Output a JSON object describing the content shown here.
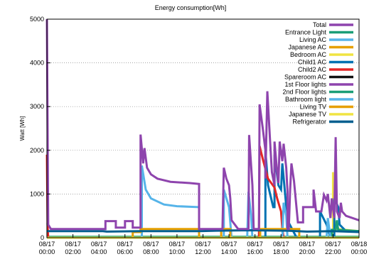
{
  "chart_data": {
    "type": "line",
    "title": "Energy consumption[Wh]",
    "xlabel": "",
    "ylabel": "Watt [Wh]",
    "x_ticks": [
      {
        "hour": 0,
        "date": "08/17",
        "time": "00:00"
      },
      {
        "hour": 2,
        "date": "08/17",
        "time": "02:00"
      },
      {
        "hour": 4,
        "date": "08/17",
        "time": "04:00"
      },
      {
        "hour": 6,
        "date": "08/17",
        "time": "06:00"
      },
      {
        "hour": 8,
        "date": "08/17",
        "time": "08:00"
      },
      {
        "hour": 10,
        "date": "08/17",
        "time": "10:00"
      },
      {
        "hour": 12,
        "date": "08/17",
        "time": "12:00"
      },
      {
        "hour": 14,
        "date": "08/17",
        "time": "14:00"
      },
      {
        "hour": 16,
        "date": "08/17",
        "time": "16:00"
      },
      {
        "hour": 18,
        "date": "08/17",
        "time": "18:00"
      },
      {
        "hour": 20,
        "date": "08/17",
        "time": "20:00"
      },
      {
        "hour": 22,
        "date": "08/17",
        "time": "22:00"
      },
      {
        "hour": 24,
        "date": "08/18",
        "time": "00:00"
      }
    ],
    "xlim": [
      0,
      24
    ],
    "ylim": [
      0,
      5000
    ],
    "y_ticks": [
      0,
      1000,
      2000,
      3000,
      4000,
      5000
    ],
    "grid": "horizontal dotted",
    "legend_position": "top-right",
    "series": [
      {
        "name": "Total",
        "color": "#8e44ad",
        "points": [
          [
            0,
            5000
          ],
          [
            0.1,
            300
          ],
          [
            0.3,
            200
          ],
          [
            4.5,
            200
          ],
          [
            4.5,
            380
          ],
          [
            5.3,
            380
          ],
          [
            5.3,
            230
          ],
          [
            6.0,
            230
          ],
          [
            6.0,
            380
          ],
          [
            6.6,
            380
          ],
          [
            6.6,
            230
          ],
          [
            7.2,
            230
          ],
          [
            7.2,
            2360
          ],
          [
            7.4,
            1700
          ],
          [
            7.5,
            2050
          ],
          [
            7.7,
            1600
          ],
          [
            8.0,
            1450
          ],
          [
            8.5,
            1350
          ],
          [
            9.5,
            1280
          ],
          [
            11,
            1250
          ],
          [
            11.7,
            1230
          ],
          [
            11.7,
            200
          ],
          [
            13.5,
            200
          ],
          [
            13.6,
            1600
          ],
          [
            13.8,
            1350
          ],
          [
            14.0,
            1200
          ],
          [
            14.1,
            900
          ],
          [
            14.2,
            400
          ],
          [
            14.7,
            200
          ],
          [
            15.5,
            200
          ],
          [
            15.55,
            2350
          ],
          [
            15.8,
            1200
          ],
          [
            15.9,
            200
          ],
          [
            16.3,
            200
          ],
          [
            16.35,
            3050
          ],
          [
            16.6,
            2500
          ],
          [
            16.8,
            2000
          ],
          [
            16.8,
            1350
          ],
          [
            16.95,
            3350
          ],
          [
            17.2,
            2000
          ],
          [
            17.3,
            1500
          ],
          [
            17.5,
            1200
          ],
          [
            17.5,
            2200
          ],
          [
            17.7,
            1500
          ],
          [
            17.8,
            1250
          ],
          [
            17.9,
            2200
          ],
          [
            18.1,
            1750
          ],
          [
            18.2,
            2150
          ],
          [
            18.4,
            1600
          ],
          [
            18.5,
            1050
          ],
          [
            18.5,
            200
          ],
          [
            18.6,
            200
          ],
          [
            18.7,
            1100
          ],
          [
            18.8,
            1700
          ],
          [
            19.0,
            1300
          ],
          [
            19.3,
            350
          ],
          [
            19.7,
            350
          ],
          [
            19.7,
            700
          ],
          [
            20.5,
            700
          ],
          [
            20.5,
            1100
          ],
          [
            20.7,
            600
          ],
          [
            21.1,
            600
          ],
          [
            21.3,
            980
          ],
          [
            21.5,
            850
          ],
          [
            21.6,
            1000
          ],
          [
            21.8,
            450
          ],
          [
            21.9,
            900
          ],
          [
            22.1,
            450
          ],
          [
            22.2,
            2300
          ],
          [
            22.3,
            600
          ],
          [
            22.5,
            450
          ],
          [
            22.6,
            800
          ],
          [
            22.7,
            600
          ],
          [
            23,
            500
          ],
          [
            23.5,
            450
          ],
          [
            24,
            400
          ]
        ]
      },
      {
        "name": "Entrance Light",
        "color": "#1a9e77",
        "points": [
          [
            0,
            340
          ],
          [
            0.05,
            340
          ],
          [
            0.05,
            20
          ],
          [
            24,
            20
          ]
        ]
      },
      {
        "name": "Living AC",
        "color": "#56b4e9",
        "points": [
          [
            0,
            0
          ],
          [
            7.3,
            0
          ],
          [
            7.3,
            1650
          ],
          [
            7.6,
            1100
          ],
          [
            8,
            900
          ],
          [
            9,
            760
          ],
          [
            10,
            720
          ],
          [
            11.7,
            700
          ],
          [
            11.7,
            0
          ],
          [
            13.6,
            0
          ],
          [
            13.6,
            1100
          ],
          [
            14,
            700
          ],
          [
            14.2,
            0
          ],
          [
            15.4,
            0
          ],
          [
            15.5,
            1050
          ],
          [
            15.7,
            500
          ],
          [
            15.8,
            0
          ],
          [
            24,
            0
          ]
        ]
      },
      {
        "name": "Japanese AC",
        "color": "#e69f00",
        "points": [
          [
            0,
            0
          ],
          [
            6.6,
            0
          ],
          [
            6.6,
            130
          ],
          [
            7.2,
            130
          ],
          [
            7.2,
            200
          ],
          [
            11.7,
            200
          ],
          [
            11.7,
            0
          ],
          [
            13.4,
            0
          ],
          [
            13.4,
            200
          ],
          [
            14.1,
            200
          ],
          [
            14.1,
            0
          ],
          [
            24,
            0
          ]
        ]
      },
      {
        "name": "Bedroom AC",
        "color": "#f0e442",
        "points": [
          [
            0,
            0
          ],
          [
            22.0,
            0
          ],
          [
            22.0,
            1500
          ],
          [
            22.1,
            400
          ],
          [
            22.3,
            200
          ],
          [
            24,
            150
          ]
        ]
      },
      {
        "name": "Child1 AC",
        "color": "#0072b2",
        "points": [
          [
            0,
            0
          ],
          [
            16.8,
            0
          ],
          [
            16.8,
            2000
          ],
          [
            17.0,
            1200
          ],
          [
            17.4,
            700
          ],
          [
            17.5,
            700
          ],
          [
            17.5,
            1900
          ],
          [
            17.8,
            1200
          ],
          [
            18.0,
            1100
          ],
          [
            18.1,
            1700
          ],
          [
            18.5,
            400
          ],
          [
            19.2,
            0
          ],
          [
            21.0,
            0
          ],
          [
            21.0,
            600
          ],
          [
            21.5,
            300
          ],
          [
            21.8,
            0
          ],
          [
            22.1,
            0
          ],
          [
            22.1,
            900
          ],
          [
            22.4,
            700
          ],
          [
            22.5,
            300
          ],
          [
            23,
            150
          ],
          [
            24,
            150
          ]
        ]
      },
      {
        "name": "Child2 AC",
        "color": "#e32626",
        "points": [
          [
            0,
            1900
          ],
          [
            0.05,
            300
          ],
          [
            0.1,
            0
          ],
          [
            16.3,
            0
          ],
          [
            16.35,
            2100
          ],
          [
            16.6,
            1800
          ],
          [
            17,
            1350
          ],
          [
            17.5,
            1150
          ],
          [
            17.7,
            900
          ],
          [
            18.0,
            600
          ],
          [
            18.1,
            200
          ],
          [
            18.2,
            0
          ],
          [
            24,
            0
          ]
        ]
      },
      {
        "name": "Spareroom AC",
        "color": "#111111",
        "points": [
          [
            0,
            0
          ],
          [
            24,
            0
          ]
        ]
      },
      {
        "name": "1st Floor lights",
        "color": "#8e44ad",
        "points": [
          [
            0,
            0
          ],
          [
            24,
            0
          ]
        ]
      },
      {
        "name": "2nd Floor lights",
        "color": "#1a9e77",
        "points": [
          [
            0,
            0
          ],
          [
            21.9,
            0
          ],
          [
            21.9,
            180
          ],
          [
            22.2,
            180
          ],
          [
            22.3,
            400
          ],
          [
            22.4,
            180
          ],
          [
            24,
            150
          ]
        ]
      },
      {
        "name": "Bathroom light",
        "color": "#56b4e9",
        "points": [
          [
            0,
            0
          ],
          [
            18.1,
            0
          ],
          [
            18.2,
            800
          ],
          [
            18.4,
            500
          ],
          [
            18.5,
            0
          ],
          [
            21.5,
            0
          ],
          [
            21.6,
            450
          ],
          [
            21.8,
            0
          ],
          [
            24,
            0
          ]
        ]
      },
      {
        "name": "Living TV",
        "color": "#e69f00",
        "points": [
          [
            0,
            0
          ],
          [
            16.4,
            0
          ],
          [
            16.4,
            200
          ],
          [
            19.4,
            200
          ],
          [
            19.4,
            0
          ],
          [
            24,
            0
          ]
        ]
      },
      {
        "name": "Japanese TV",
        "color": "#f0e442",
        "points": [
          [
            0,
            0
          ],
          [
            24,
            0
          ]
        ]
      },
      {
        "name": "Refrigerator",
        "color": "#005f8f",
        "points": [
          [
            0,
            150
          ],
          [
            4.3,
            150
          ],
          [
            4.6,
            140
          ],
          [
            7.2,
            150
          ],
          [
            11.7,
            150
          ],
          [
            13,
            160
          ],
          [
            15.5,
            170
          ],
          [
            18.5,
            160
          ],
          [
            20,
            140
          ],
          [
            22,
            150
          ],
          [
            24,
            130
          ]
        ]
      }
    ]
  }
}
